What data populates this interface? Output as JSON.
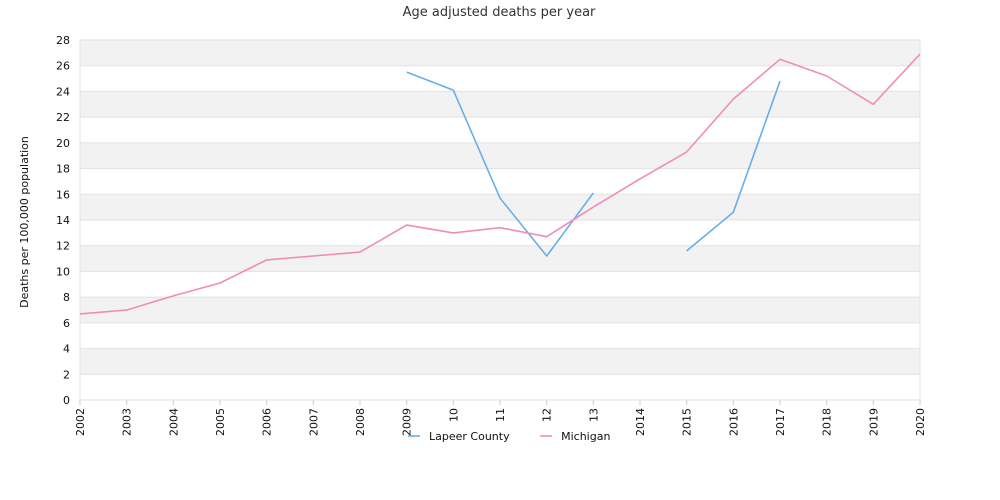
{
  "chart_data": {
    "type": "line",
    "title": "Age adjusted deaths per year",
    "xlabel": "",
    "ylabel": "Deaths per 100,000 population",
    "x_tick_labels": [
      "2002",
      "2003",
      "2004",
      "2005",
      "2006",
      "2007",
      "2008",
      "2009",
      "2010",
      "2011",
      "2012",
      "2013",
      "2014",
      "2015",
      "2016",
      "2017",
      "2018",
      "2019",
      "2020"
    ],
    "x_tick_labels_displayed": [
      "2002",
      "2003",
      "2004",
      "2005",
      "2006",
      "2007",
      "2008",
      "2009",
      "10",
      "11",
      "12",
      "13",
      "2014",
      "2015",
      "2016",
      "2017",
      "2018",
      "2019",
      "2020"
    ],
    "x": [
      2002,
      2003,
      2004,
      2005,
      2006,
      2007,
      2008,
      2009,
      2010,
      2011,
      2012,
      2013,
      2014,
      2015,
      2016,
      2017,
      2018,
      2019,
      2020
    ],
    "ylim": [
      0,
      28
    ],
    "yticks": [
      0,
      2,
      4,
      6,
      8,
      10,
      12,
      14,
      16,
      18,
      20,
      22,
      24,
      26,
      28
    ],
    "grid": true,
    "legend_position": "bottom",
    "series": [
      {
        "name": "Lapeer County",
        "color": "#6aaee8",
        "values": [
          null,
          null,
          null,
          null,
          null,
          null,
          null,
          25.5,
          24.1,
          15.7,
          11.2,
          16.1,
          null,
          11.6,
          14.6,
          24.8,
          null,
          null,
          null
        ]
      },
      {
        "name": "Michigan",
        "color": "#f08cb8",
        "values": [
          6.7,
          7.0,
          8.1,
          9.1,
          10.9,
          11.2,
          11.5,
          13.6,
          13.0,
          13.4,
          12.7,
          15.0,
          17.2,
          19.3,
          23.4,
          26.5,
          25.2,
          23.0,
          26.9
        ]
      }
    ]
  }
}
